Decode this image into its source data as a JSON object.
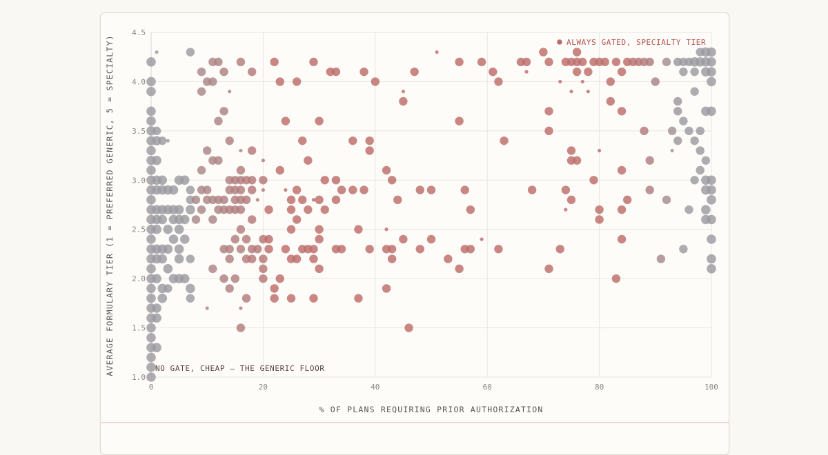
{
  "colors": {
    "grey": "#9b9aa0",
    "red": "#bd6c6a",
    "label_red": "#b5504c",
    "label_dark": "#5a3f3f",
    "grid": "#e9e6e1"
  },
  "chart_data": {
    "type": "scatter",
    "xlabel": "% OF PLANS REQUIRING PRIOR AUTHORIZATION",
    "ylabel": "AVERAGE FORMULARY TIER (1 = PREFERRED GENERIC, 5 = SPECIALTY)",
    "xlim": [
      0,
      100
    ],
    "ylim": [
      1.0,
      4.5
    ],
    "x_ticks": [
      "0",
      "20",
      "40",
      "60",
      "80",
      "100"
    ],
    "y_ticks": [
      "1.0",
      "1.5",
      "2.0",
      "2.5",
      "3.0",
      "3.5",
      "4.0",
      "4.5"
    ],
    "grid": true,
    "annotations": [
      {
        "text": "ALWAYS GATED, SPECIALTY TIER",
        "position": "top-right",
        "color": "red"
      },
      {
        "text": "NO GATE, CHEAP — THE GENERIC FLOOR",
        "position": "bottom-left",
        "color": "dark"
      }
    ],
    "points": [
      [
        0,
        1.0,
        3
      ],
      [
        0,
        1.1,
        3
      ],
      [
        0,
        1.2,
        3
      ],
      [
        0,
        1.3,
        3
      ],
      [
        0,
        1.4,
        3
      ],
      [
        0,
        1.5,
        3
      ],
      [
        0,
        1.6,
        3
      ],
      [
        0,
        1.7,
        3
      ],
      [
        0,
        1.8,
        3
      ],
      [
        0,
        1.9,
        3
      ],
      [
        0,
        2.0,
        3
      ],
      [
        0,
        2.1,
        3
      ],
      [
        0,
        2.2,
        3
      ],
      [
        0,
        2.3,
        3
      ],
      [
        0,
        2.4,
        3
      ],
      [
        0,
        2.5,
        3
      ],
      [
        0,
        2.6,
        3
      ],
      [
        0,
        2.7,
        3
      ],
      [
        0,
        2.8,
        3
      ],
      [
        0,
        2.9,
        3
      ],
      [
        0,
        3.0,
        3
      ],
      [
        0,
        3.1,
        3
      ],
      [
        0,
        3.2,
        3
      ],
      [
        0,
        3.3,
        3
      ],
      [
        0,
        3.4,
        3
      ],
      [
        0,
        3.5,
        3
      ],
      [
        0,
        3.6,
        3
      ],
      [
        0,
        3.7,
        3
      ],
      [
        0,
        3.9,
        3
      ],
      [
        0,
        4.0,
        3
      ],
      [
        0,
        4.2,
        3
      ],
      [
        1,
        1.3,
        3
      ],
      [
        1,
        1.6,
        3
      ],
      [
        1,
        1.7,
        3
      ],
      [
        1,
        2.0,
        3
      ],
      [
        1,
        2.2,
        3
      ],
      [
        1,
        2.3,
        3
      ],
      [
        1,
        2.5,
        3
      ],
      [
        1,
        2.6,
        3
      ],
      [
        1,
        2.7,
        3
      ],
      [
        1,
        2.9,
        3
      ],
      [
        1,
        3.0,
        3
      ],
      [
        1,
        3.2,
        3
      ],
      [
        1,
        3.4,
        3
      ],
      [
        1,
        3.5,
        2
      ],
      [
        1,
        4.3,
        1
      ],
      [
        2,
        1.8,
        3
      ],
      [
        2,
        1.9,
        3
      ],
      [
        2,
        2.2,
        3
      ],
      [
        2,
        2.3,
        3
      ],
      [
        2,
        2.6,
        3
      ],
      [
        2,
        2.7,
        3
      ],
      [
        2,
        2.9,
        3
      ],
      [
        2,
        3.0,
        3
      ],
      [
        2,
        3.4,
        2
      ],
      [
        3,
        3.4,
        1
      ],
      [
        3,
        1.9,
        2
      ],
      [
        3,
        2.1,
        3
      ],
      [
        3,
        2.3,
        3
      ],
      [
        3,
        2.5,
        3
      ],
      [
        3,
        2.7,
        3
      ],
      [
        3,
        2.9,
        3
      ],
      [
        4,
        2.0,
        3
      ],
      [
        4,
        2.4,
        3
      ],
      [
        4,
        2.6,
        3
      ],
      [
        4,
        2.7,
        3
      ],
      [
        4,
        2.9,
        3
      ],
      [
        5,
        2.0,
        3
      ],
      [
        5,
        2.2,
        3
      ],
      [
        5,
        2.3,
        3
      ],
      [
        5,
        2.5,
        3
      ],
      [
        5,
        2.6,
        3
      ],
      [
        5,
        2.7,
        3
      ],
      [
        5,
        3.0,
        3
      ],
      [
        6,
        2.0,
        3
      ],
      [
        6,
        2.4,
        3
      ],
      [
        6,
        2.6,
        3
      ],
      [
        6,
        3.0,
        3
      ],
      [
        7,
        1.8,
        2
      ],
      [
        7,
        1.9,
        3
      ],
      [
        7,
        2.2,
        2
      ],
      [
        7,
        2.7,
        3
      ],
      [
        7,
        2.8,
        2
      ],
      [
        7,
        2.9,
        2
      ],
      [
        7,
        4.3,
        2
      ],
      [
        8,
        2.6,
        2
      ],
      [
        8,
        2.8,
        2
      ],
      [
        9,
        2.7,
        2
      ],
      [
        9,
        3.1,
        2
      ],
      [
        9,
        4.1,
        2
      ],
      [
        9,
        3.9,
        2
      ],
      [
        9,
        2.9,
        2
      ],
      [
        10,
        1.7,
        1
      ],
      [
        10,
        2.8,
        2
      ],
      [
        10,
        2.9,
        2
      ],
      [
        10,
        3.3,
        2
      ],
      [
        10,
        4.0,
        2
      ],
      [
        11,
        2.1,
        2
      ],
      [
        11,
        2.6,
        2
      ],
      [
        11,
        2.8,
        2
      ],
      [
        11,
        3.2,
        2
      ],
      [
        11,
        4.0,
        2
      ],
      [
        11,
        4.2,
        2
      ],
      [
        12,
        2.7,
        2
      ],
      [
        12,
        2.8,
        2
      ],
      [
        12,
        3.2,
        2
      ],
      [
        12,
        3.6,
        2
      ],
      [
        12,
        4.2,
        2
      ],
      [
        13,
        2.0,
        2
      ],
      [
        13,
        2.3,
        2
      ],
      [
        13,
        2.7,
        2
      ],
      [
        13,
        2.8,
        2
      ],
      [
        13,
        3.7,
        2
      ],
      [
        13,
        4.1,
        2
      ],
      [
        14,
        1.9,
        2
      ],
      [
        14,
        2.2,
        2
      ],
      [
        14,
        2.3,
        2
      ],
      [
        14,
        2.7,
        2
      ],
      [
        14,
        2.9,
        2
      ],
      [
        14,
        3.0,
        2
      ],
      [
        14,
        3.4,
        2
      ],
      [
        14,
        3.9,
        1
      ],
      [
        15,
        2.0,
        2
      ],
      [
        15,
        2.4,
        2
      ],
      [
        15,
        2.7,
        2
      ],
      [
        15,
        2.8,
        2
      ],
      [
        15,
        2.9,
        2
      ],
      [
        15,
        3.0,
        2
      ],
      [
        16,
        1.5,
        2
      ],
      [
        16,
        1.7,
        1
      ],
      [
        16,
        2.3,
        2
      ],
      [
        16,
        2.5,
        2
      ],
      [
        16,
        2.7,
        2
      ],
      [
        16,
        2.8,
        2
      ],
      [
        16,
        2.9,
        2
      ],
      [
        16,
        3.0,
        2
      ],
      [
        16,
        3.1,
        2
      ],
      [
        16,
        3.3,
        1
      ],
      [
        16,
        4.2,
        2
      ],
      [
        17,
        1.8,
        2
      ],
      [
        17,
        2.2,
        2
      ],
      [
        17,
        2.4,
        2
      ],
      [
        17,
        2.8,
        2
      ],
      [
        17,
        3.0,
        2
      ],
      [
        18,
        2.2,
        2
      ],
      [
        18,
        2.3,
        2
      ],
      [
        18,
        2.6,
        2
      ],
      [
        18,
        2.9,
        2
      ],
      [
        18,
        3.0,
        2
      ],
      [
        18,
        3.3,
        2
      ],
      [
        18,
        4.1,
        2
      ],
      [
        19,
        2.3,
        2
      ],
      [
        19,
        2.8,
        1
      ],
      [
        20,
        2.0,
        2
      ],
      [
        20,
        2.1,
        2
      ],
      [
        20,
        2.2,
        2
      ],
      [
        20,
        2.4,
        2
      ],
      [
        20,
        2.9,
        1
      ],
      [
        20,
        3.0,
        2
      ],
      [
        20,
        3.2,
        1
      ],
      [
        21,
        2.3,
        2
      ],
      [
        21,
        2.4,
        2
      ],
      [
        21,
        2.7,
        2
      ],
      [
        22,
        1.8,
        2
      ],
      [
        22,
        1.9,
        2
      ],
      [
        22,
        4.2,
        2
      ],
      [
        23,
        2.0,
        2
      ],
      [
        23,
        3.1,
        2
      ],
      [
        23,
        4.0,
        2
      ],
      [
        24,
        2.3,
        2
      ],
      [
        24,
        2.9,
        1
      ],
      [
        24,
        3.6,
        2
      ],
      [
        25,
        1.8,
        2
      ],
      [
        25,
        2.2,
        2
      ],
      [
        25,
        2.5,
        2
      ],
      [
        25,
        2.7,
        2
      ],
      [
        25,
        2.8,
        2
      ],
      [
        26,
        2.2,
        2
      ],
      [
        26,
        2.6,
        2
      ],
      [
        26,
        2.9,
        2
      ],
      [
        26,
        4.0,
        2
      ],
      [
        27,
        2.3,
        2
      ],
      [
        27,
        2.8,
        2
      ],
      [
        27,
        3.4,
        2
      ],
      [
        28,
        2.3,
        2
      ],
      [
        28,
        2.7,
        2
      ],
      [
        28,
        3.2,
        2
      ],
      [
        29,
        1.8,
        2
      ],
      [
        29,
        2.2,
        2
      ],
      [
        29,
        2.3,
        2
      ],
      [
        29,
        2.8,
        1
      ],
      [
        29,
        4.2,
        2
      ],
      [
        30,
        2.1,
        2
      ],
      [
        30,
        2.4,
        2
      ],
      [
        30,
        2.5,
        2
      ],
      [
        30,
        2.8,
        2
      ],
      [
        30,
        3.6,
        2
      ],
      [
        31,
        2.7,
        2
      ],
      [
        31,
        3.0,
        2
      ],
      [
        32,
        4.1,
        2
      ],
      [
        33,
        2.3,
        2
      ],
      [
        33,
        2.8,
        2
      ],
      [
        33,
        3.0,
        2
      ],
      [
        33,
        4.1,
        2
      ],
      [
        34,
        2.3,
        2
      ],
      [
        34,
        2.9,
        2
      ],
      [
        36,
        2.9,
        2
      ],
      [
        36,
        3.4,
        2
      ],
      [
        37,
        1.8,
        2
      ],
      [
        37,
        2.5,
        2
      ],
      [
        38,
        2.9,
        2
      ],
      [
        38,
        4.1,
        2
      ],
      [
        39,
        2.3,
        2
      ],
      [
        39,
        3.3,
        2
      ],
      [
        39,
        3.4,
        2
      ],
      [
        40,
        4.0,
        2
      ],
      [
        42,
        1.9,
        2
      ],
      [
        42,
        2.3,
        2
      ],
      [
        42,
        2.5,
        1
      ],
      [
        42,
        3.1,
        2
      ],
      [
        43,
        2.2,
        2
      ],
      [
        43,
        2.3,
        2
      ],
      [
        43,
        3.0,
        2
      ],
      [
        44,
        2.8,
        2
      ],
      [
        45,
        2.4,
        2
      ],
      [
        45,
        3.8,
        2
      ],
      [
        45,
        3.9,
        1
      ],
      [
        46,
        1.5,
        2
      ],
      [
        47,
        4.1,
        2
      ],
      [
        48,
        2.3,
        2
      ],
      [
        48,
        2.9,
        2
      ],
      [
        50,
        2.4,
        2
      ],
      [
        50,
        2.9,
        2
      ],
      [
        51,
        4.3,
        1
      ],
      [
        53,
        2.2,
        2
      ],
      [
        55,
        2.1,
        2
      ],
      [
        55,
        3.6,
        2
      ],
      [
        55,
        4.2,
        2
      ],
      [
        56,
        2.3,
        2
      ],
      [
        56,
        2.9,
        2
      ],
      [
        57,
        2.3,
        2
      ],
      [
        57,
        2.7,
        2
      ],
      [
        59,
        2.4,
        1
      ],
      [
        59,
        4.2,
        2
      ],
      [
        61,
        4.1,
        2
      ],
      [
        62,
        2.3,
        2
      ],
      [
        62,
        4.0,
        2
      ],
      [
        63,
        3.4,
        2
      ],
      [
        66,
        4.2,
        2
      ],
      [
        67,
        4.1,
        1
      ],
      [
        67,
        4.2,
        2
      ],
      [
        68,
        2.9,
        2
      ],
      [
        70,
        4.3,
        2
      ],
      [
        71,
        2.1,
        2
      ],
      [
        71,
        3.5,
        2
      ],
      [
        71,
        3.7,
        2
      ],
      [
        71,
        4.2,
        2
      ],
      [
        73,
        2.3,
        2
      ],
      [
        73,
        4.0,
        1
      ],
      [
        74,
        2.7,
        1
      ],
      [
        74,
        2.9,
        2
      ],
      [
        74,
        4.2,
        2
      ],
      [
        75,
        2.8,
        2
      ],
      [
        75,
        3.2,
        2
      ],
      [
        75,
        3.3,
        2
      ],
      [
        75,
        3.9,
        1
      ],
      [
        75,
        4.2,
        2
      ],
      [
        76,
        3.2,
        2
      ],
      [
        76,
        4.1,
        2
      ],
      [
        76,
        4.2,
        2
      ],
      [
        76,
        4.3,
        2
      ],
      [
        77,
        4.0,
        1
      ],
      [
        77,
        4.2,
        2
      ],
      [
        78,
        3.9,
        1
      ],
      [
        78,
        4.1,
        2
      ],
      [
        79,
        3.0,
        2
      ],
      [
        79,
        4.2,
        2
      ],
      [
        80,
        2.6,
        2
      ],
      [
        80,
        2.7,
        2
      ],
      [
        80,
        3.3,
        1
      ],
      [
        80,
        4.2,
        2
      ],
      [
        81,
        4.2,
        2
      ],
      [
        82,
        3.8,
        2
      ],
      [
        82,
        4.0,
        2
      ],
      [
        83,
        2.0,
        2
      ],
      [
        83,
        4.2,
        2
      ],
      [
        84,
        2.4,
        2
      ],
      [
        84,
        2.7,
        2
      ],
      [
        84,
        3.1,
        2
      ],
      [
        84,
        3.7,
        2
      ],
      [
        84,
        4.1,
        2
      ],
      [
        85,
        2.8,
        2
      ],
      [
        85,
        4.2,
        2
      ],
      [
        86,
        4.2,
        2
      ],
      [
        87,
        4.2,
        2
      ],
      [
        88,
        3.5,
        2
      ],
      [
        88,
        4.2,
        2
      ],
      [
        89,
        2.9,
        2
      ],
      [
        89,
        3.2,
        2
      ],
      [
        89,
        4.2,
        2
      ],
      [
        90,
        4.0,
        2
      ],
      [
        91,
        2.2,
        2
      ],
      [
        92,
        2.8,
        2
      ],
      [
        92,
        4.2,
        2
      ],
      [
        93,
        3.3,
        1
      ],
      [
        93,
        3.5,
        2
      ],
      [
        94,
        3.4,
        2
      ],
      [
        94,
        3.7,
        2
      ],
      [
        94,
        3.8,
        2
      ],
      [
        94,
        4.2,
        2
      ],
      [
        95,
        2.3,
        2
      ],
      [
        95,
        3.6,
        2
      ],
      [
        95,
        4.1,
        2
      ],
      [
        95,
        4.2,
        2
      ],
      [
        96,
        2.7,
        2
      ],
      [
        96,
        3.5,
        2
      ],
      [
        96,
        4.2,
        2
      ],
      [
        97,
        3.0,
        2
      ],
      [
        97,
        3.4,
        2
      ],
      [
        97,
        3.9,
        2
      ],
      [
        97,
        4.1,
        2
      ],
      [
        97,
        4.2,
        3
      ],
      [
        98,
        3.1,
        2
      ],
      [
        98,
        3.3,
        2
      ],
      [
        98,
        3.5,
        2
      ],
      [
        98,
        4.2,
        3
      ],
      [
        98,
        4.3,
        2
      ],
      [
        99,
        2.6,
        3
      ],
      [
        99,
        2.7,
        3
      ],
      [
        99,
        2.9,
        3
      ],
      [
        99,
        3.0,
        3
      ],
      [
        99,
        3.2,
        2
      ],
      [
        99,
        3.7,
        3
      ],
      [
        99,
        4.1,
        3
      ],
      [
        99,
        4.2,
        3
      ],
      [
        99,
        4.3,
        3
      ],
      [
        100,
        2.1,
        3
      ],
      [
        100,
        2.2,
        3
      ],
      [
        100,
        2.4,
        3
      ],
      [
        100,
        2.6,
        3
      ],
      [
        100,
        2.8,
        3
      ],
      [
        100,
        2.9,
        3
      ],
      [
        100,
        3.0,
        3
      ],
      [
        100,
        3.7,
        3
      ],
      [
        100,
        4.0,
        3
      ],
      [
        100,
        4.1,
        3
      ],
      [
        100,
        4.2,
        3
      ],
      [
        100,
        4.3,
        3
      ]
    ]
  }
}
